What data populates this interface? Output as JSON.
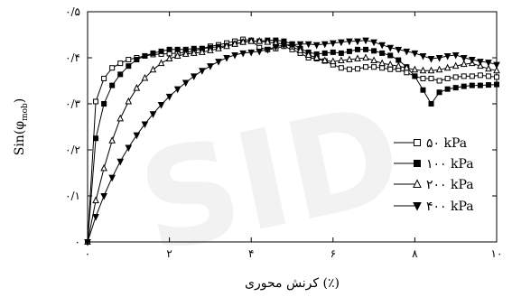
{
  "chart_data": {
    "type": "line",
    "title": "",
    "xlabel": "کرنش محوری (٪)",
    "ylabel": "Sin(φ",
    "ylabel_sub": "mob",
    "ylabel_close": ")",
    "xlim": [
      0,
      10
    ],
    "ylim": [
      0,
      0.5
    ],
    "x_ticks": [
      {
        "value": 0,
        "label": "۰"
      },
      {
        "value": 2,
        "label": "۲"
      },
      {
        "value": 4,
        "label": "۴"
      },
      {
        "value": 6,
        "label": "۶"
      },
      {
        "value": 8,
        "label": "۸"
      },
      {
        "value": 10,
        "label": "۱۰"
      }
    ],
    "y_ticks": [
      {
        "value": 0,
        "label": "۰"
      },
      {
        "value": 0.1,
        "label": "۰/۱"
      },
      {
        "value": 0.2,
        "label": "۰/۲"
      },
      {
        "value": 0.3,
        "label": "۰/۳"
      },
      {
        "value": 0.4,
        "label": "۰/۴"
      },
      {
        "value": 0.5,
        "label": "۰/۵"
      }
    ],
    "grid": false,
    "legend_position": "right",
    "series": [
      {
        "name": "۵۰ kPa",
        "marker": "square-open",
        "x": [
          0,
          0.2,
          0.4,
          0.6,
          0.8,
          1.0,
          1.2,
          1.4,
          1.6,
          1.8,
          2.0,
          2.2,
          2.4,
          2.6,
          2.8,
          3.0,
          3.2,
          3.4,
          3.6,
          3.8,
          4.0,
          4.2,
          4.4,
          4.6,
          4.8,
          5.0,
          5.2,
          5.4,
          5.6,
          5.8,
          6.0,
          6.2,
          6.4,
          6.6,
          6.8,
          7.0,
          7.2,
          7.4,
          7.6,
          7.8,
          8.0,
          8.2,
          8.4,
          8.6,
          8.8,
          9.0,
          9.2,
          9.4,
          9.6,
          9.8,
          10.0
        ],
        "y": [
          0,
          0.305,
          0.355,
          0.378,
          0.388,
          0.396,
          0.4,
          0.404,
          0.407,
          0.408,
          0.409,
          0.41,
          0.412,
          0.415,
          0.42,
          0.425,
          0.428,
          0.432,
          0.436,
          0.44,
          0.438,
          0.422,
          0.418,
          0.42,
          0.425,
          0.418,
          0.41,
          0.4,
          0.398,
          0.393,
          0.385,
          0.378,
          0.375,
          0.376,
          0.38,
          0.38,
          0.378,
          0.375,
          0.375,
          0.368,
          0.36,
          0.355,
          0.355,
          0.35,
          0.355,
          0.358,
          0.36,
          0.36,
          0.362,
          0.36,
          0.358
        ]
      },
      {
        "name": "۱۰۰ kPa",
        "marker": "square-filled",
        "x": [
          0,
          0.2,
          0.4,
          0.6,
          0.8,
          1.0,
          1.2,
          1.4,
          1.6,
          1.8,
          2.0,
          2.2,
          2.4,
          2.6,
          2.8,
          3.0,
          3.2,
          3.4,
          3.6,
          3.8,
          4.0,
          4.2,
          4.4,
          4.6,
          4.8,
          5.0,
          5.2,
          5.4,
          5.6,
          5.8,
          6.0,
          6.2,
          6.4,
          6.6,
          6.8,
          7.0,
          7.2,
          7.4,
          7.6,
          7.8,
          8.0,
          8.2,
          8.4,
          8.6,
          8.8,
          9.0,
          9.2,
          9.4,
          9.6,
          9.8,
          10.0
        ],
        "y": [
          0,
          0.225,
          0.3,
          0.34,
          0.364,
          0.382,
          0.396,
          0.404,
          0.41,
          0.414,
          0.418,
          0.418,
          0.418,
          0.42,
          0.42,
          0.422,
          0.424,
          0.426,
          0.43,
          0.434,
          0.436,
          0.436,
          0.438,
          0.438,
          0.436,
          0.43,
          0.42,
          0.412,
          0.408,
          0.41,
          0.412,
          0.41,
          0.414,
          0.418,
          0.418,
          0.415,
          0.41,
          0.405,
          0.395,
          0.38,
          0.36,
          0.33,
          0.3,
          0.325,
          0.332,
          0.335,
          0.338,
          0.34,
          0.34,
          0.341,
          0.342
        ]
      },
      {
        "name": "۲۰۰ kPa",
        "marker": "triangle-up-open",
        "x": [
          0,
          0.2,
          0.4,
          0.6,
          0.8,
          1.0,
          1.2,
          1.4,
          1.6,
          1.8,
          2.0,
          2.2,
          2.4,
          2.6,
          2.8,
          3.0,
          3.2,
          3.4,
          3.6,
          3.8,
          4.0,
          4.2,
          4.4,
          4.6,
          4.8,
          5.0,
          5.2,
          5.4,
          5.6,
          5.8,
          6.0,
          6.2,
          6.4,
          6.6,
          6.8,
          7.0,
          7.2,
          7.4,
          7.6,
          7.8,
          8.0,
          8.2,
          8.4,
          8.6,
          8.8,
          9.0,
          9.2,
          9.4,
          9.6,
          9.8,
          10.0
        ],
        "y": [
          0,
          0.09,
          0.16,
          0.22,
          0.268,
          0.305,
          0.334,
          0.356,
          0.374,
          0.388,
          0.398,
          0.404,
          0.408,
          0.41,
          0.412,
          0.416,
          0.42,
          0.425,
          0.43,
          0.434,
          0.436,
          0.436,
          0.434,
          0.432,
          0.43,
          0.424,
          0.416,
          0.406,
          0.4,
          0.394,
          0.392,
          0.394,
          0.396,
          0.398,
          0.4,
          0.394,
          0.388,
          0.385,
          0.382,
          0.378,
          0.374,
          0.372,
          0.372,
          0.374,
          0.378,
          0.382,
          0.386,
          0.388,
          0.382,
          0.376,
          0.372
        ]
      },
      {
        "name": "۴۰۰ kPa",
        "marker": "triangle-down-filled",
        "x": [
          0,
          0.2,
          0.4,
          0.6,
          0.8,
          1.0,
          1.2,
          1.4,
          1.6,
          1.8,
          2.0,
          2.2,
          2.4,
          2.6,
          2.8,
          3.0,
          3.2,
          3.4,
          3.6,
          3.8,
          4.0,
          4.2,
          4.4,
          4.6,
          4.8,
          5.0,
          5.2,
          5.4,
          5.6,
          5.8,
          6.0,
          6.2,
          6.4,
          6.6,
          6.8,
          7.0,
          7.2,
          7.4,
          7.6,
          7.8,
          8.0,
          8.2,
          8.4,
          8.6,
          8.8,
          9.0,
          9.2,
          9.4,
          9.6,
          9.8,
          10.0
        ],
        "y": [
          0,
          0.055,
          0.1,
          0.14,
          0.175,
          0.205,
          0.232,
          0.256,
          0.278,
          0.298,
          0.316,
          0.332,
          0.346,
          0.36,
          0.372,
          0.382,
          0.392,
          0.4,
          0.406,
          0.41,
          0.412,
          0.414,
          0.418,
          0.424,
          0.428,
          0.428,
          0.43,
          0.43,
          0.428,
          0.43,
          0.432,
          0.434,
          0.436,
          0.436,
          0.438,
          0.434,
          0.428,
          0.422,
          0.418,
          0.414,
          0.41,
          0.404,
          0.398,
          0.4,
          0.404,
          0.406,
          0.4,
          0.396,
          0.392,
          0.39,
          0.385
        ]
      }
    ]
  },
  "watermark": {
    "text": "SID",
    "color": "#f2f2f2"
  }
}
